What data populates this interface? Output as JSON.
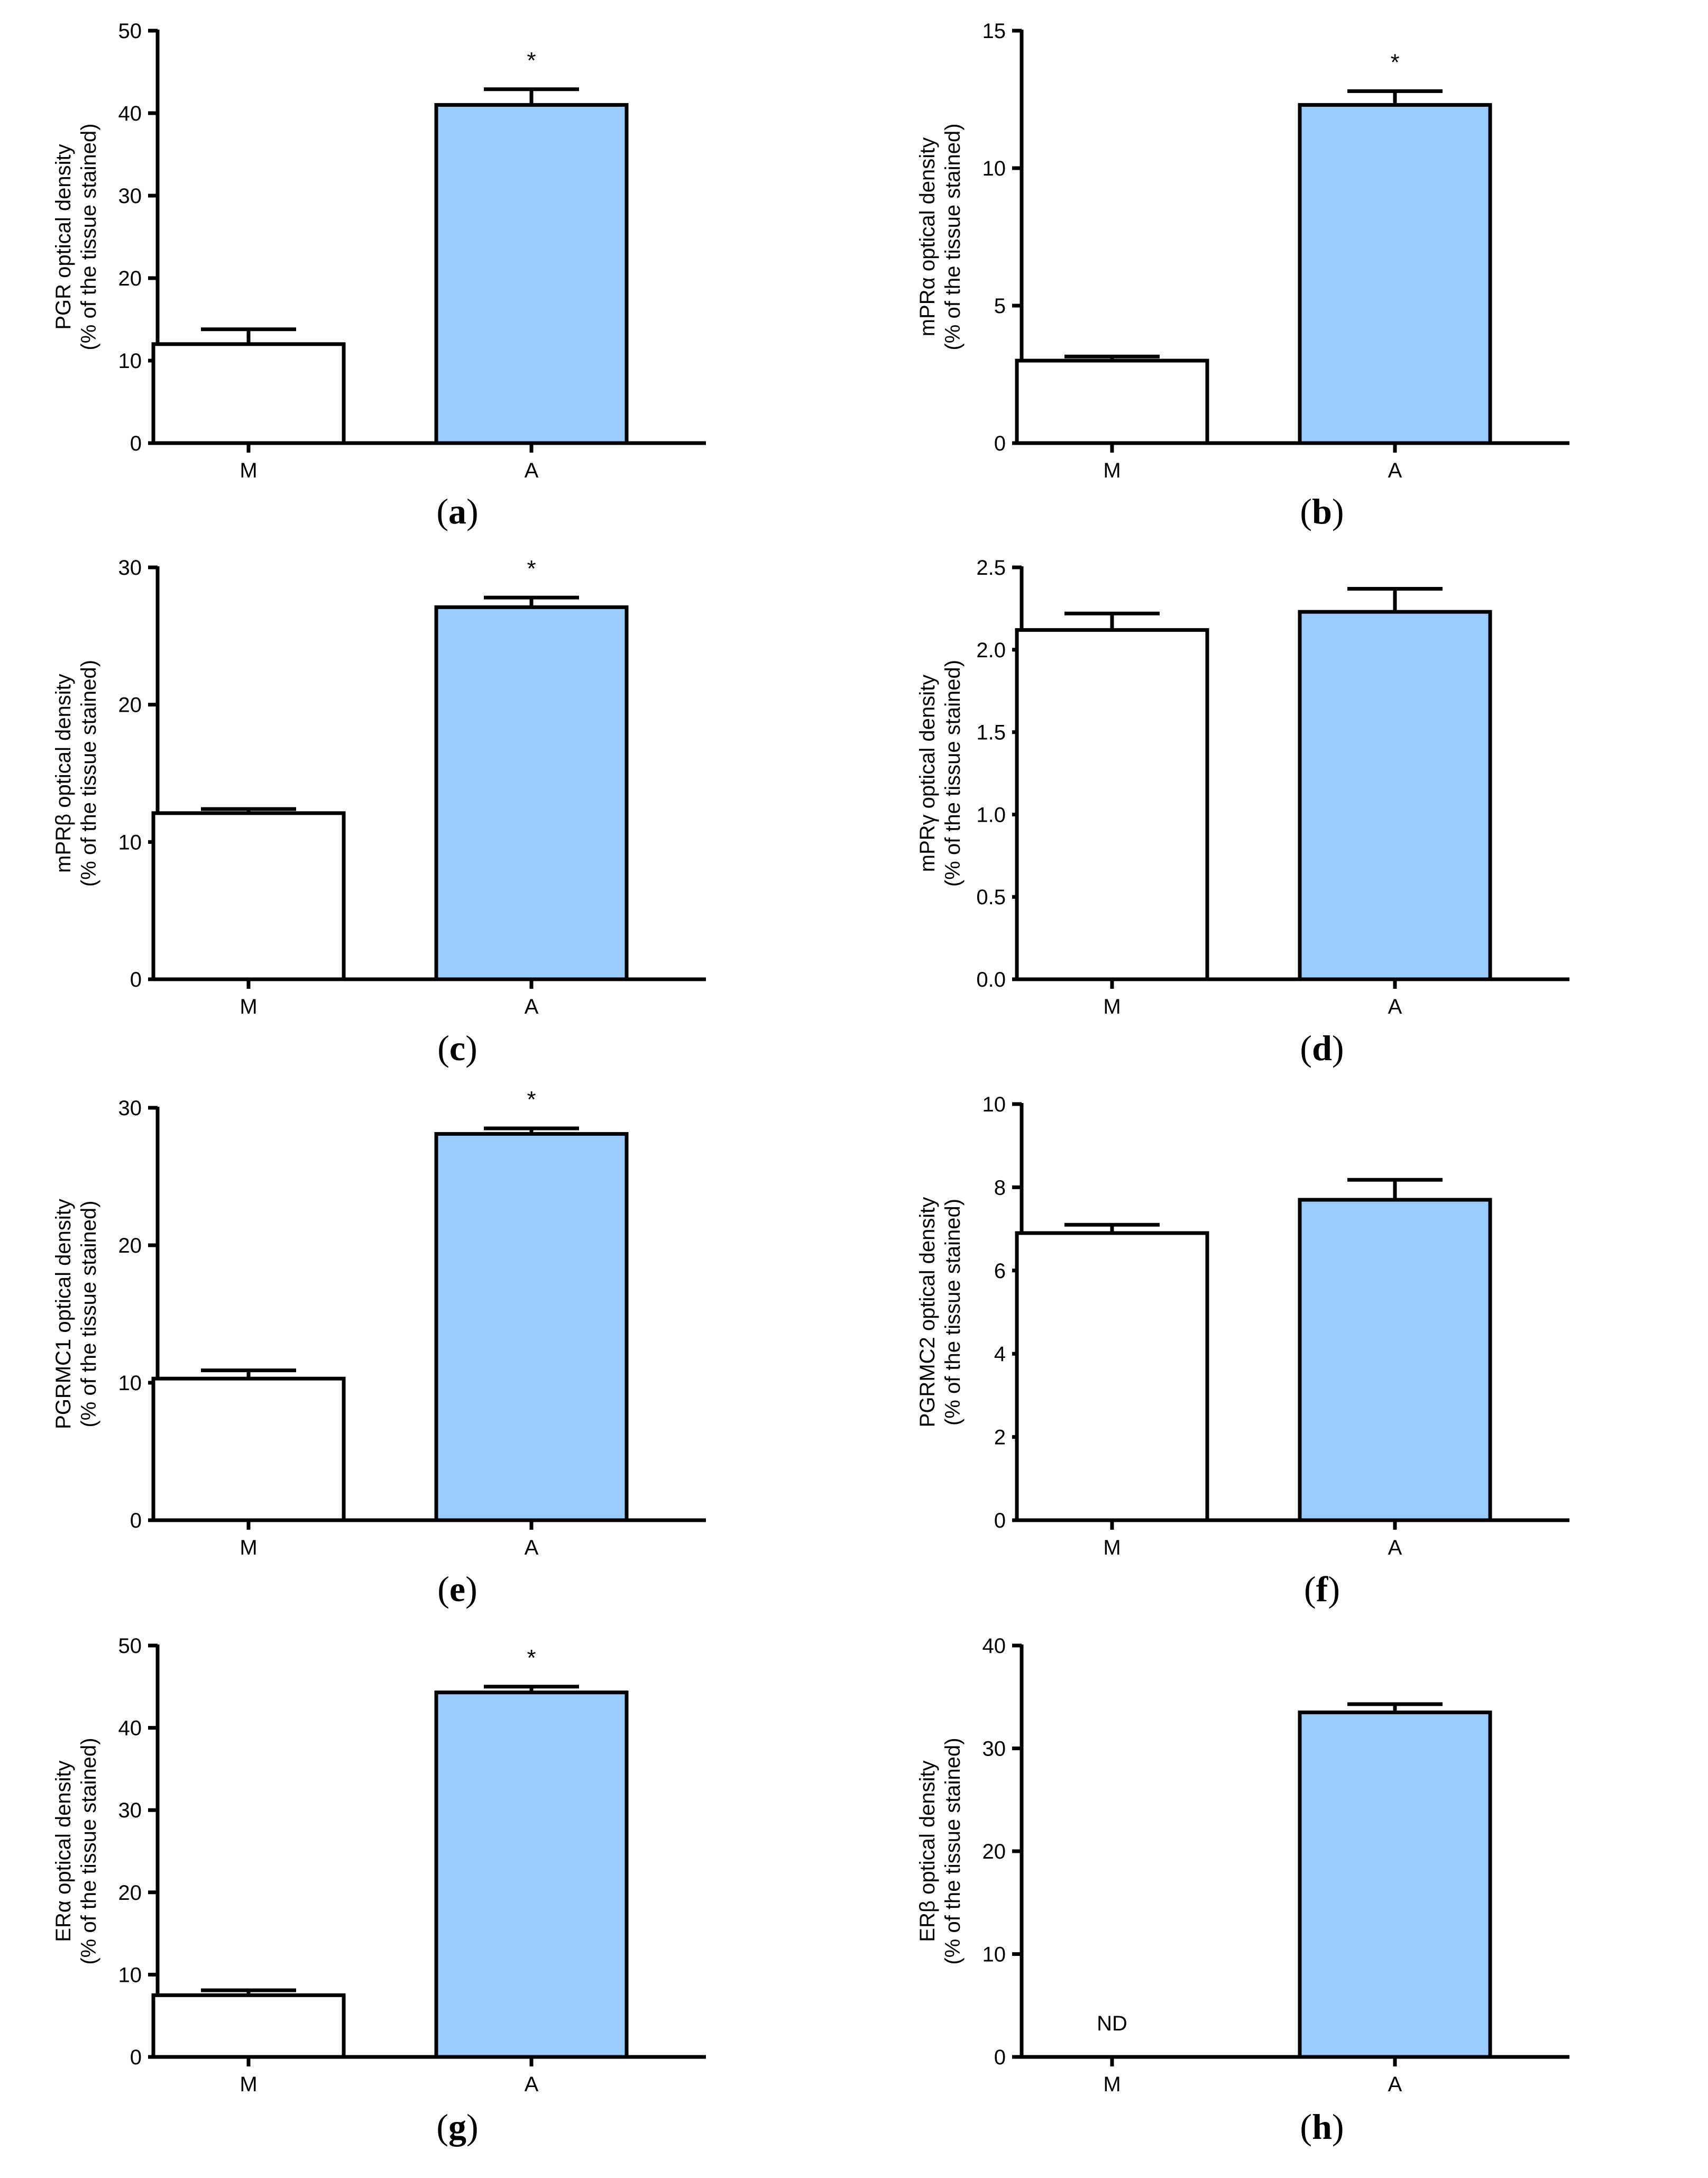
{
  "figure": {
    "colors": {
      "control_bar": "#ffffff",
      "treated_bar": "#99ccff",
      "ink": "#000000"
    },
    "chart_data": [
      {
        "panel": "a",
        "caption_open": "(",
        "caption_letter": "a",
        "caption_close": ")",
        "type": "bar",
        "categories": [
          "M",
          "A"
        ],
        "values": [
          12,
          41
        ],
        "errors": [
          1.8,
          1.9
        ],
        "ylabel_line1": "PGR optical density",
        "ylabel_line2": "(% of the tissue stained)",
        "ylim": [
          0,
          50
        ],
        "yticks": [
          0,
          10,
          20,
          30,
          40,
          50
        ],
        "ytick_labels": [
          "0",
          "10",
          "20",
          "30",
          "40",
          "50"
        ],
        "annotations": [
          "",
          "*"
        ]
      },
      {
        "panel": "b",
        "caption_open": "(",
        "caption_letter": "b",
        "caption_close": ")",
        "type": "bar",
        "categories": [
          "M",
          "A"
        ],
        "values": [
          3.0,
          12.3
        ],
        "errors": [
          0.15,
          0.5
        ],
        "ylabel_line1": "mPRα optical density",
        "ylabel_line2": "(% of the tissue stained)",
        "ylim": [
          0,
          15
        ],
        "yticks": [
          0,
          5,
          10,
          15
        ],
        "ytick_labels": [
          "0",
          "5",
          "10",
          "15"
        ],
        "annotations": [
          "",
          "*"
        ]
      },
      {
        "panel": "c",
        "caption_open": "(",
        "caption_letter": "c",
        "caption_close": ")",
        "type": "bar",
        "categories": [
          "M",
          "A"
        ],
        "values": [
          12.1,
          27.1
        ],
        "errors": [
          0.3,
          0.7
        ],
        "ylabel_line1": "mPRβ optical density",
        "ylabel_line2": "(% of the tissue stained)",
        "ylim": [
          0,
          30
        ],
        "yticks": [
          0,
          10,
          20,
          30
        ],
        "ytick_labels": [
          "0",
          "10",
          "20",
          "30"
        ],
        "annotations": [
          "",
          "*"
        ]
      },
      {
        "panel": "d",
        "caption_open": "(",
        "caption_letter": "d",
        "caption_close": ")",
        "type": "bar",
        "categories": [
          "M",
          "A"
        ],
        "values": [
          2.12,
          2.23
        ],
        "errors": [
          0.1,
          0.14
        ],
        "ylabel_line1": "mPRγ optical density",
        "ylabel_line2": "(% of the tissue stained)",
        "ylim": [
          0,
          2.5
        ],
        "yticks": [
          0,
          0.5,
          1.0,
          1.5,
          2.0,
          2.5
        ],
        "ytick_labels": [
          "0.0",
          "0.5",
          "1.0",
          "1.5",
          "2.0",
          "2.5"
        ],
        "annotations": [
          "",
          ""
        ]
      },
      {
        "panel": "e",
        "caption_open": "(",
        "caption_letter": "e",
        "caption_close": ")",
        "type": "bar",
        "categories": [
          "M",
          "A"
        ],
        "values": [
          10.3,
          28.1
        ],
        "errors": [
          0.6,
          0.4
        ],
        "ylabel_line1": "PGRMC1 optical density",
        "ylabel_line2": "(% of the tissue stained)",
        "ylim": [
          0,
          30
        ],
        "yticks": [
          0,
          10,
          20,
          30
        ],
        "ytick_labels": [
          "0",
          "10",
          "20",
          "30"
        ],
        "annotations": [
          "",
          "*"
        ]
      },
      {
        "panel": "f",
        "caption_open": "(",
        "caption_letter": "f",
        "caption_close": ")",
        "type": "bar",
        "categories": [
          "M",
          "A"
        ],
        "values": [
          6.9,
          7.7
        ],
        "errors": [
          0.2,
          0.48
        ],
        "ylabel_line1": "PGRMC2 optical density",
        "ylabel_line2": "(% of the tissue stained)",
        "ylim": [
          0,
          10
        ],
        "yticks": [
          0,
          2,
          4,
          6,
          8,
          10
        ],
        "ytick_labels": [
          "0",
          "2",
          "4",
          "6",
          "8",
          "10"
        ],
        "annotations": [
          "",
          ""
        ]
      },
      {
        "panel": "g",
        "caption_open": "(",
        "caption_letter": "g",
        "caption_close": ")",
        "type": "bar",
        "categories": [
          "M",
          "A"
        ],
        "values": [
          7.5,
          44.3
        ],
        "errors": [
          0.6,
          0.7
        ],
        "ylabel_line1": "ERα optical density",
        "ylabel_line2": "(% of the tissue stained)",
        "ylim": [
          0,
          50
        ],
        "yticks": [
          0,
          10,
          20,
          30,
          40,
          50
        ],
        "ytick_labels": [
          "0",
          "10",
          "20",
          "30",
          "40",
          "50"
        ],
        "annotations": [
          "",
          "*"
        ]
      },
      {
        "panel": "h",
        "caption_open": "(",
        "caption_letter": "h",
        "caption_close": ")",
        "type": "bar",
        "categories": [
          "M",
          "A"
        ],
        "values": [
          null,
          33.5
        ],
        "errors": [
          null,
          0.8
        ],
        "ylabel_line1": "ERβ optical density",
        "ylabel_line2": "(% of the tissue stained)",
        "ylim": [
          0,
          40
        ],
        "yticks": [
          0,
          10,
          20,
          30,
          40
        ],
        "ytick_labels": [
          "0",
          "10",
          "20",
          "30",
          "40"
        ],
        "annotations": [
          "ND",
          ""
        ]
      }
    ]
  }
}
